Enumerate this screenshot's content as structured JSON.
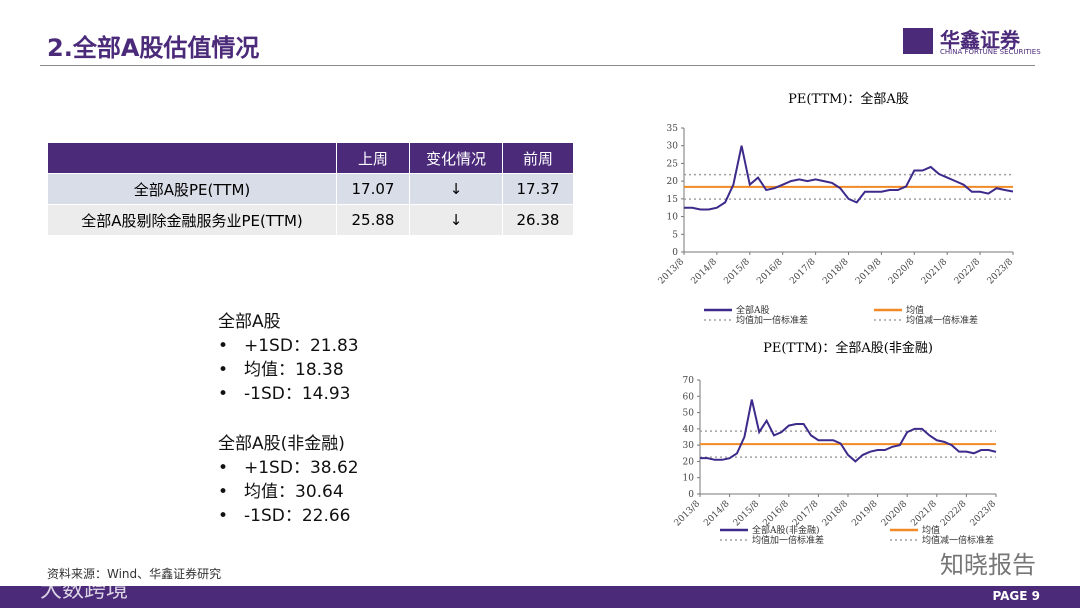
{
  "header": {
    "title": "2.全部A股估值情况",
    "logo_cn": "华鑫证券",
    "logo_en": "CHINA FORTUNE SECURITIES"
  },
  "table": {
    "columns": [
      "上周",
      "变化情况",
      "前周"
    ],
    "rows": [
      [
        "全部A股PE(TTM)",
        "17.07",
        "↓",
        "17.37"
      ],
      [
        "全部A股剔除金融服务业PE(TTM)",
        "25.88",
        "↓",
        "26.38"
      ]
    ]
  },
  "stats": [
    {
      "title": "全部A股",
      "items": [
        "+1SD：21.83",
        "均值：18.38",
        "-1SD：14.93"
      ]
    },
    {
      "title": "全部A股(非金融)",
      "items": [
        "+1SD：38.62",
        "均值：30.64",
        "-1SD：22.66"
      ]
    }
  ],
  "source": "资料来源：Wind、华鑫证券研究",
  "page": "PAGE 9",
  "watermarks": [
    "知晓报告",
    "大数跨境"
  ],
  "chart_data": [
    {
      "type": "line",
      "title": "PE(TTM)：全部A股",
      "categories": [
        "2013/8",
        null,
        null,
        null,
        "2014/8",
        null,
        null,
        null,
        "2015/8",
        null,
        null,
        null,
        "2016/8",
        null,
        null,
        null,
        "2017/8",
        null,
        null,
        null,
        "2018/8",
        null,
        null,
        null,
        "2019/8",
        null,
        null,
        null,
        "2020/8",
        null,
        null,
        null,
        "2021/8",
        null,
        null,
        null,
        "2022/8",
        null,
        null,
        null,
        "2023/8"
      ],
      "series": [
        {
          "name": "全部A股",
          "color": "#3d2a8a",
          "values": [
            12.5,
            12.5,
            12,
            12,
            12.5,
            14,
            19,
            30,
            19,
            21,
            17.5,
            18,
            19,
            20,
            20.5,
            20,
            20.5,
            20,
            19.5,
            18,
            15,
            14,
            17,
            17,
            17,
            17.5,
            17.5,
            18.5,
            23,
            23,
            24,
            22,
            21,
            20,
            19,
            17,
            17,
            16.5,
            18,
            17.5,
            17.07
          ]
        }
      ],
      "reference_lines": [
        {
          "name": "均值",
          "color": "#f08a24",
          "value": 18.38,
          "dashed": false
        },
        {
          "name": "均值加一倍标准差",
          "color": "#a0a0a0",
          "value": 21.83,
          "dashed": true
        },
        {
          "name": "均值减一倍标准差",
          "color": "#a0a0a0",
          "value": 14.93,
          "dashed": true
        }
      ],
      "ylim": [
        0,
        35
      ],
      "yticks": [
        0,
        5,
        10,
        15,
        20,
        25,
        30,
        35
      ]
    },
    {
      "type": "line",
      "title": "PE(TTM)：全部A股(非金融)",
      "categories": [
        "2013/8",
        null,
        null,
        null,
        "2014/8",
        null,
        null,
        null,
        "2015/8",
        null,
        null,
        null,
        "2016/8",
        null,
        null,
        null,
        "2017/8",
        null,
        null,
        null,
        "2018/8",
        null,
        null,
        null,
        "2019/8",
        null,
        null,
        null,
        "2020/8",
        null,
        null,
        null,
        "2021/8",
        null,
        null,
        null,
        "2022/8",
        null,
        null,
        null,
        "2023/8"
      ],
      "series": [
        {
          "name": "全部A股(非金融)",
          "color": "#3d2a8a",
          "values": [
            22,
            22,
            21,
            21,
            22,
            25,
            35,
            58,
            38,
            45,
            36,
            38,
            42,
            43,
            43,
            36,
            33,
            33,
            33,
            31,
            24,
            20,
            24,
            26,
            27,
            27,
            29,
            30,
            38,
            40,
            40,
            36,
            33,
            32,
            30,
            26,
            26,
            25,
            27,
            27,
            25.88
          ]
        }
      ],
      "reference_lines": [
        {
          "name": "均值",
          "color": "#f08a24",
          "value": 30.64,
          "dashed": false
        },
        {
          "name": "均值加一倍标准差",
          "color": "#a0a0a0",
          "value": 38.62,
          "dashed": true
        },
        {
          "name": "均值减一倍标准差",
          "color": "#a0a0a0",
          "value": 22.66,
          "dashed": true
        }
      ],
      "ylim": [
        0,
        70
      ],
      "yticks": [
        0,
        10,
        20,
        30,
        40,
        50,
        60,
        70
      ]
    }
  ]
}
